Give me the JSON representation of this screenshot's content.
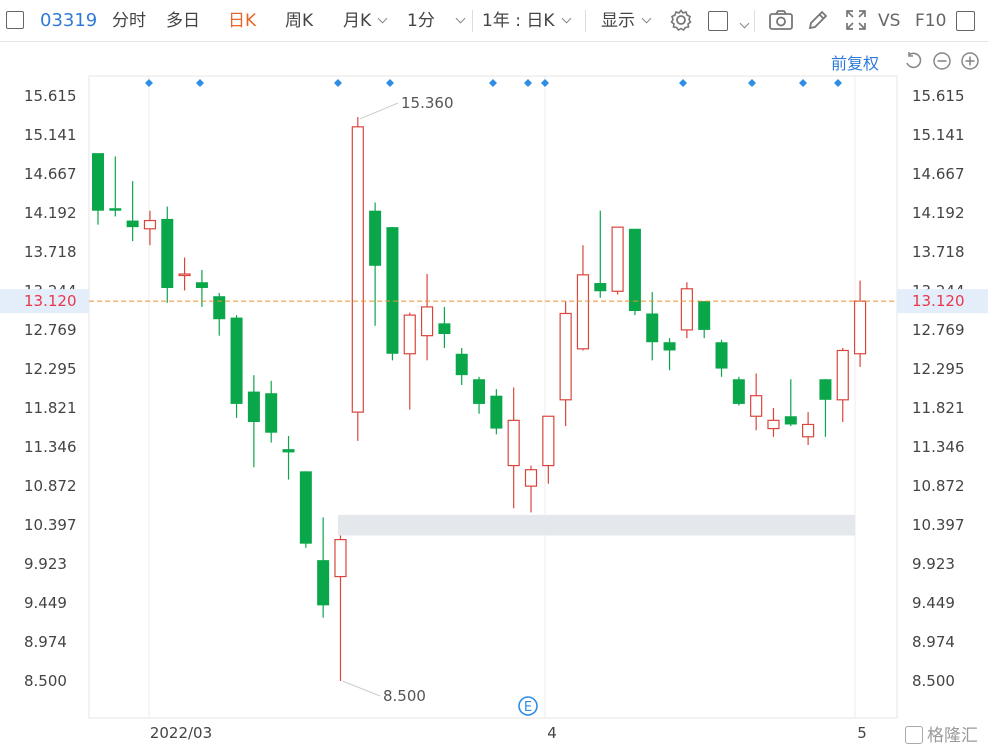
{
  "toolbar": {
    "code": "03319",
    "items": [
      "分时",
      "多日",
      "日K",
      "周K",
      "月K",
      "1分"
    ],
    "active": "日K",
    "range": "1年 : 日K",
    "display": "显示",
    "vs": "VS",
    "f10": "F10"
  },
  "subbar": {
    "fuquan": "前复权"
  },
  "watermark": "格隆汇",
  "colors": {
    "up": "#d9453d",
    "down": "#0aa64a",
    "current_line": "#e8902f",
    "current_label": "#e8364a",
    "accent": "#2f7bd9"
  },
  "chart_data": {
    "type": "candlestick",
    "y_ticks": [
      "15.615",
      "15.141",
      "14.667",
      "14.192",
      "13.718",
      "13.244",
      "12.769",
      "12.295",
      "11.821",
      "11.346",
      "10.872",
      "10.397",
      "9.923",
      "9.449",
      "8.974",
      "8.500"
    ],
    "ylim": [
      8.5,
      15.615
    ],
    "x_labels": [
      "2022/03",
      "4",
      "5"
    ],
    "current_price": "13.120",
    "annotations": {
      "high": "15.360",
      "low": "8.500",
      "event_marker": "E"
    },
    "candles": [
      {
        "o": 14.92,
        "c": 14.22,
        "h": 14.92,
        "l": 14.05
      },
      {
        "o": 14.25,
        "c": 14.22,
        "h": 14.88,
        "l": 14.15
      },
      {
        "o": 14.1,
        "c": 14.02,
        "h": 14.58,
        "l": 13.85
      },
      {
        "o": 14.0,
        "c": 14.1,
        "h": 14.22,
        "l": 13.8
      },
      {
        "o": 14.12,
        "c": 13.28,
        "h": 14.27,
        "l": 13.1
      },
      {
        "o": 13.45,
        "c": 13.45,
        "h": 13.65,
        "l": 13.25
      },
      {
        "o": 13.35,
        "c": 13.28,
        "h": 13.5,
        "l": 13.05
      },
      {
        "o": 13.18,
        "c": 12.9,
        "h": 13.22,
        "l": 12.7
      },
      {
        "o": 12.92,
        "c": 11.87,
        "h": 12.95,
        "l": 11.7
      },
      {
        "o": 12.02,
        "c": 11.65,
        "h": 12.22,
        "l": 11.1
      },
      {
        "o": 12.0,
        "c": 11.52,
        "h": 12.15,
        "l": 11.4
      },
      {
        "o": 11.32,
        "c": 11.28,
        "h": 11.48,
        "l": 10.95
      },
      {
        "o": 11.05,
        "c": 10.17,
        "h": 11.05,
        "l": 10.12
      },
      {
        "o": 9.97,
        "c": 9.42,
        "h": 10.49,
        "l": 9.27
      },
      {
        "o": 9.77,
        "c": 10.22,
        "h": 10.27,
        "l": 8.5
      },
      {
        "o": 11.77,
        "c": 15.24,
        "h": 15.36,
        "l": 11.42
      },
      {
        "o": 14.22,
        "c": 13.55,
        "h": 14.32,
        "l": 12.82
      },
      {
        "o": 14.02,
        "c": 12.48,
        "h": 14.02,
        "l": 12.4
      },
      {
        "o": 12.48,
        "c": 12.95,
        "h": 12.98,
        "l": 11.8
      },
      {
        "o": 12.7,
        "c": 13.05,
        "h": 13.45,
        "l": 12.4
      },
      {
        "o": 12.85,
        "c": 12.72,
        "h": 13.05,
        "l": 12.55
      },
      {
        "o": 12.48,
        "c": 12.22,
        "h": 12.55,
        "l": 12.1
      },
      {
        "o": 12.17,
        "c": 11.87,
        "h": 12.2,
        "l": 11.75
      },
      {
        "o": 11.97,
        "c": 11.57,
        "h": 12.05,
        "l": 11.5
      },
      {
        "o": 11.12,
        "c": 11.67,
        "h": 12.07,
        "l": 10.6
      },
      {
        "o": 10.87,
        "c": 11.07,
        "h": 11.12,
        "l": 10.55
      },
      {
        "o": 11.12,
        "c": 11.72,
        "h": 11.72,
        "l": 10.9
      },
      {
        "o": 11.92,
        "c": 12.97,
        "h": 13.12,
        "l": 11.6
      },
      {
        "o": 12.54,
        "c": 13.44,
        "h": 13.8,
        "l": 12.52
      },
      {
        "o": 13.34,
        "c": 13.24,
        "h": 14.22,
        "l": 13.16
      },
      {
        "o": 13.24,
        "c": 14.02,
        "h": 14.02,
        "l": 13.2
      },
      {
        "o": 14.0,
        "c": 13.0,
        "h": 14.0,
        "l": 12.95
      },
      {
        "o": 12.97,
        "c": 12.62,
        "h": 13.23,
        "l": 12.4
      },
      {
        "o": 12.62,
        "c": 12.52,
        "h": 12.67,
        "l": 12.28
      },
      {
        "o": 12.77,
        "c": 13.27,
        "h": 13.35,
        "l": 12.67
      },
      {
        "o": 13.12,
        "c": 12.77,
        "h": 13.12,
        "l": 12.67
      },
      {
        "o": 12.62,
        "c": 12.3,
        "h": 12.65,
        "l": 12.2
      },
      {
        "o": 12.17,
        "c": 11.87,
        "h": 12.2,
        "l": 11.85
      },
      {
        "o": 11.72,
        "c": 11.97,
        "h": 12.24,
        "l": 11.55
      },
      {
        "o": 11.57,
        "c": 11.67,
        "h": 11.82,
        "l": 11.47
      },
      {
        "o": 11.72,
        "c": 11.62,
        "h": 12.17,
        "l": 11.6
      },
      {
        "o": 11.47,
        "c": 11.62,
        "h": 11.77,
        "l": 11.37
      },
      {
        "o": 12.17,
        "c": 11.92,
        "h": 12.17,
        "l": 11.47
      },
      {
        "o": 11.92,
        "c": 12.52,
        "h": 12.55,
        "l": 11.65
      },
      {
        "o": 12.48,
        "c": 13.12,
        "h": 13.37,
        "l": 12.32
      }
    ]
  }
}
